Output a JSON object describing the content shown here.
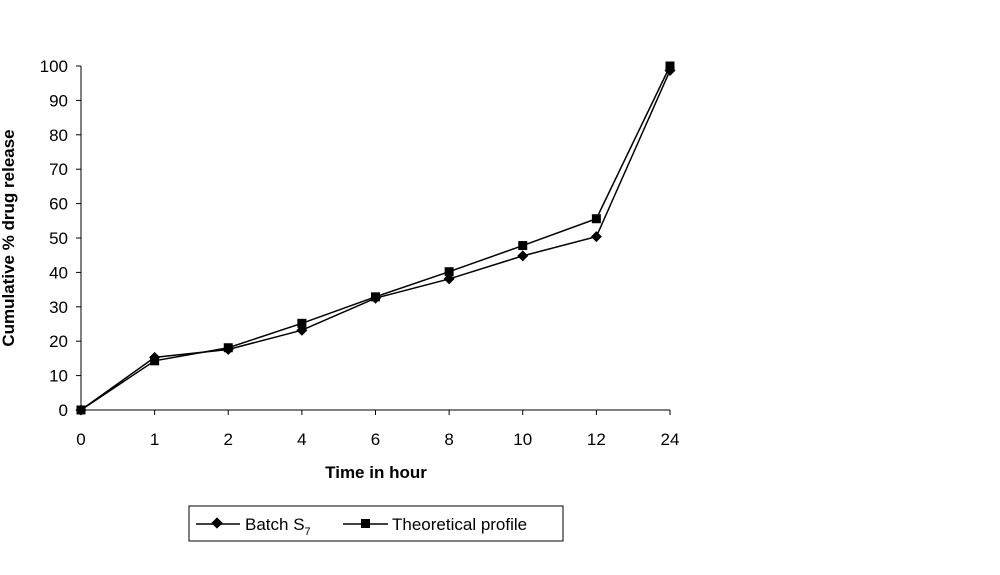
{
  "chart_data": {
    "type": "line",
    "categories": [
      "0",
      "1",
      "2",
      "4",
      "6",
      "8",
      "10",
      "12",
      "24"
    ],
    "xlabel": "Time in hour",
    "ylabel": "Cumulative % drug release",
    "ylim": [
      0,
      100
    ],
    "yticks": [
      0,
      10,
      20,
      30,
      40,
      50,
      60,
      70,
      80,
      90,
      100
    ],
    "grid": false,
    "legend_position": "bottom",
    "series": [
      {
        "name": "Batch S",
        "name_subscript": "7",
        "marker": "diamond",
        "color": "#000000",
        "values": [
          0,
          15.3,
          17.6,
          23.2,
          32.5,
          38.1,
          44.8,
          50.4,
          98.7
        ]
      },
      {
        "name": "Theoretical profile",
        "marker": "square",
        "color": "#000000",
        "values": [
          0,
          14.3,
          18.1,
          25.2,
          32.9,
          40.2,
          47.8,
          55.6,
          100
        ]
      }
    ]
  }
}
